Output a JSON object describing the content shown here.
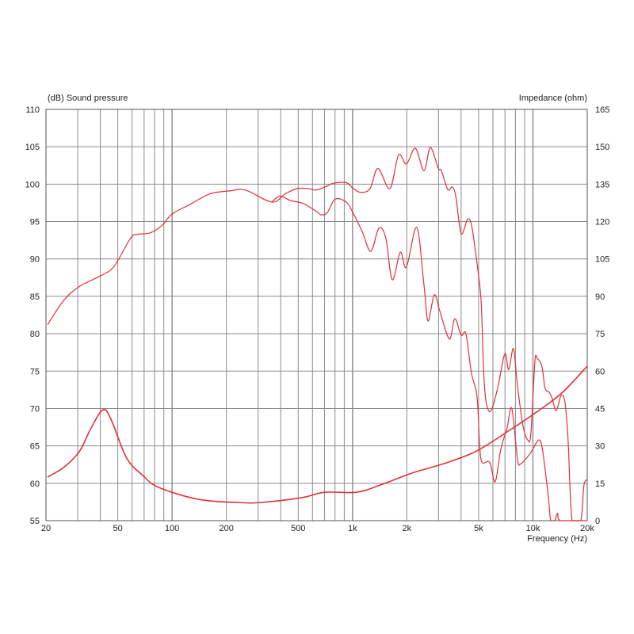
{
  "chart_data": {
    "type": "line",
    "left_axis_title": "(dB)  Sound pressure",
    "right_axis_title": "Impedance  (ohm)",
    "xlabel": "Frequency  (Hz)",
    "x_scale": "log",
    "xlim": [
      20,
      20000
    ],
    "ylim_left": [
      55,
      110
    ],
    "ylim_right": [
      0,
      165
    ],
    "grid": true,
    "x_ticks": [
      {
        "v": 20,
        "label": "20"
      },
      {
        "v": 50,
        "label": "50"
      },
      {
        "v": 100,
        "label": "100"
      },
      {
        "v": 200,
        "label": "200"
      },
      {
        "v": 500,
        "label": "500"
      },
      {
        "v": 1000,
        "label": "1k"
      },
      {
        "v": 2000,
        "label": "2k"
      },
      {
        "v": 5000,
        "label": "5k"
      },
      {
        "v": 10000,
        "label": "10k"
      },
      {
        "v": 20000,
        "label": "20k"
      }
    ],
    "y_ticks_left": [
      "55",
      "60",
      "65",
      "70",
      "75",
      "80",
      "85",
      "90",
      "95",
      "100",
      "105",
      "110"
    ],
    "y_ticks_right": [
      "0",
      "15",
      "30",
      "45",
      "60",
      "75",
      "90",
      "105",
      "120",
      "135",
      "150",
      "165"
    ],
    "line_color": "#e0303a",
    "grid_color": "#8a8a8a",
    "series": [
      {
        "axis": "left",
        "points": [
          [
            20.4,
            81.2
          ],
          [
            25,
            84.4
          ],
          [
            30.6,
            86.3
          ],
          [
            41.4,
            87.9
          ],
          [
            48,
            89.1
          ],
          [
            59,
            92.8
          ],
          [
            65,
            93.3
          ],
          [
            76,
            93.5
          ],
          [
            88,
            94.5
          ],
          [
            100,
            96.0
          ],
          [
            126,
            97.3
          ],
          [
            162,
            98.7
          ],
          [
            209,
            99.1
          ],
          [
            256,
            99.2
          ],
          [
            357,
            97.6
          ],
          [
            424,
            98.7
          ],
          [
            493,
            99.4
          ],
          [
            574,
            99.4
          ],
          [
            620,
            99.2
          ],
          [
            703,
            99.6
          ],
          [
            778,
            100.1
          ],
          [
            923,
            100.2
          ],
          [
            1000,
            99.5
          ],
          [
            1108,
            98.9
          ],
          [
            1250,
            99.4
          ],
          [
            1384,
            102.1
          ],
          [
            1610,
            99.4
          ],
          [
            1800,
            103.9
          ],
          [
            1990,
            102.7
          ],
          [
            2230,
            104.8
          ],
          [
            2490,
            101.8
          ],
          [
            2700,
            104.9
          ],
          [
            2990,
            102.1
          ],
          [
            3110,
            101.8
          ],
          [
            3370,
            99.3
          ],
          [
            3580,
            99.6
          ],
          [
            3740,
            98.3
          ],
          [
            4000,
            93.4
          ],
          [
            4340,
            95.3
          ],
          [
            4560,
            94.6
          ],
          [
            4800,
            91.0
          ],
          [
            5150,
            84.7
          ],
          [
            5310,
            75.9
          ],
          [
            5470,
            71.3
          ],
          [
            5820,
            69.6
          ],
          [
            6370,
            72.7
          ],
          [
            6980,
            77.3
          ],
          [
            7340,
            75.2
          ],
          [
            7800,
            78.0
          ],
          [
            8210,
            73.0
          ],
          [
            8810,
            67.7
          ],
          [
            9360,
            65.8
          ],
          [
            9740,
            66.7
          ],
          [
            10250,
            76.2
          ],
          [
            10560,
            76.7
          ],
          [
            11220,
            75.6
          ],
          [
            11680,
            72.7
          ],
          [
            12300,
            72.2
          ],
          [
            12800,
            71.3
          ],
          [
            13460,
            69.7
          ],
          [
            14300,
            71.7
          ],
          [
            15040,
            70.9
          ],
          [
            15650,
            66.0
          ],
          [
            16480,
            55
          ],
          [
            18400,
            55
          ],
          [
            19170,
            59.7
          ],
          [
            20000,
            60.5
          ]
        ]
      },
      {
        "axis": "left",
        "points": [
          [
            357,
            97.6
          ],
          [
            395,
            98.4
          ],
          [
            455,
            97.8
          ],
          [
            535,
            97.4
          ],
          [
            635,
            96.3
          ],
          [
            670,
            95.9
          ],
          [
            725,
            96.2
          ],
          [
            802,
            98.0
          ],
          [
            923,
            97.6
          ],
          [
            1000,
            96.3
          ],
          [
            1130,
            93.7
          ],
          [
            1262,
            91.0
          ],
          [
            1400,
            94.1
          ],
          [
            1530,
            92.8
          ],
          [
            1660,
            87.2
          ],
          [
            1840,
            90.9
          ],
          [
            1990,
            88.9
          ],
          [
            2270,
            94.2
          ],
          [
            2490,
            86.5
          ],
          [
            2620,
            81.7
          ],
          [
            2840,
            85.2
          ],
          [
            3050,
            83.0
          ],
          [
            3440,
            79.3
          ],
          [
            3690,
            82.0
          ],
          [
            4000,
            79.8
          ],
          [
            4250,
            80.0
          ],
          [
            4560,
            74.8
          ],
          [
            4900,
            71.6
          ],
          [
            5060,
            65.3
          ],
          [
            5220,
            62.8
          ],
          [
            5760,
            62.8
          ],
          [
            6180,
            60.2
          ],
          [
            6630,
            64.5
          ],
          [
            7190,
            67.4
          ],
          [
            7640,
            70.0
          ],
          [
            8210,
            63.2
          ],
          [
            8550,
            62.6
          ],
          [
            9460,
            63.7
          ],
          [
            10000,
            64.6
          ],
          [
            10780,
            65.8
          ],
          [
            11300,
            64.5
          ],
          [
            12170,
            58.2
          ],
          [
            12550,
            55
          ],
          [
            13200,
            55
          ],
          [
            13700,
            56
          ],
          [
            14300,
            55
          ],
          [
            20000,
            55
          ]
        ]
      },
      {
        "axis": "right",
        "points": [
          [
            20.4,
            17.5
          ],
          [
            25,
            21.3
          ],
          [
            30.6,
            27.7
          ],
          [
            35.6,
            37.2
          ],
          [
            41.4,
            44.5
          ],
          [
            46,
            40.4
          ],
          [
            56,
            25.1
          ],
          [
            69,
            18.1
          ],
          [
            84,
            13.4
          ],
          [
            139,
            8.6
          ],
          [
            231,
            7.3
          ],
          [
            313,
            7.3
          ],
          [
            519,
            9.2
          ],
          [
            703,
            11.4
          ],
          [
            1054,
            11.4
          ],
          [
            1426,
            14.3
          ],
          [
            2140,
            19.1
          ],
          [
            3210,
            22.9
          ],
          [
            4800,
            27.7
          ],
          [
            7190,
            35.6
          ],
          [
            10780,
            44.2
          ],
          [
            14600,
            51.5
          ],
          [
            20000,
            62.0
          ]
        ]
      }
    ]
  }
}
